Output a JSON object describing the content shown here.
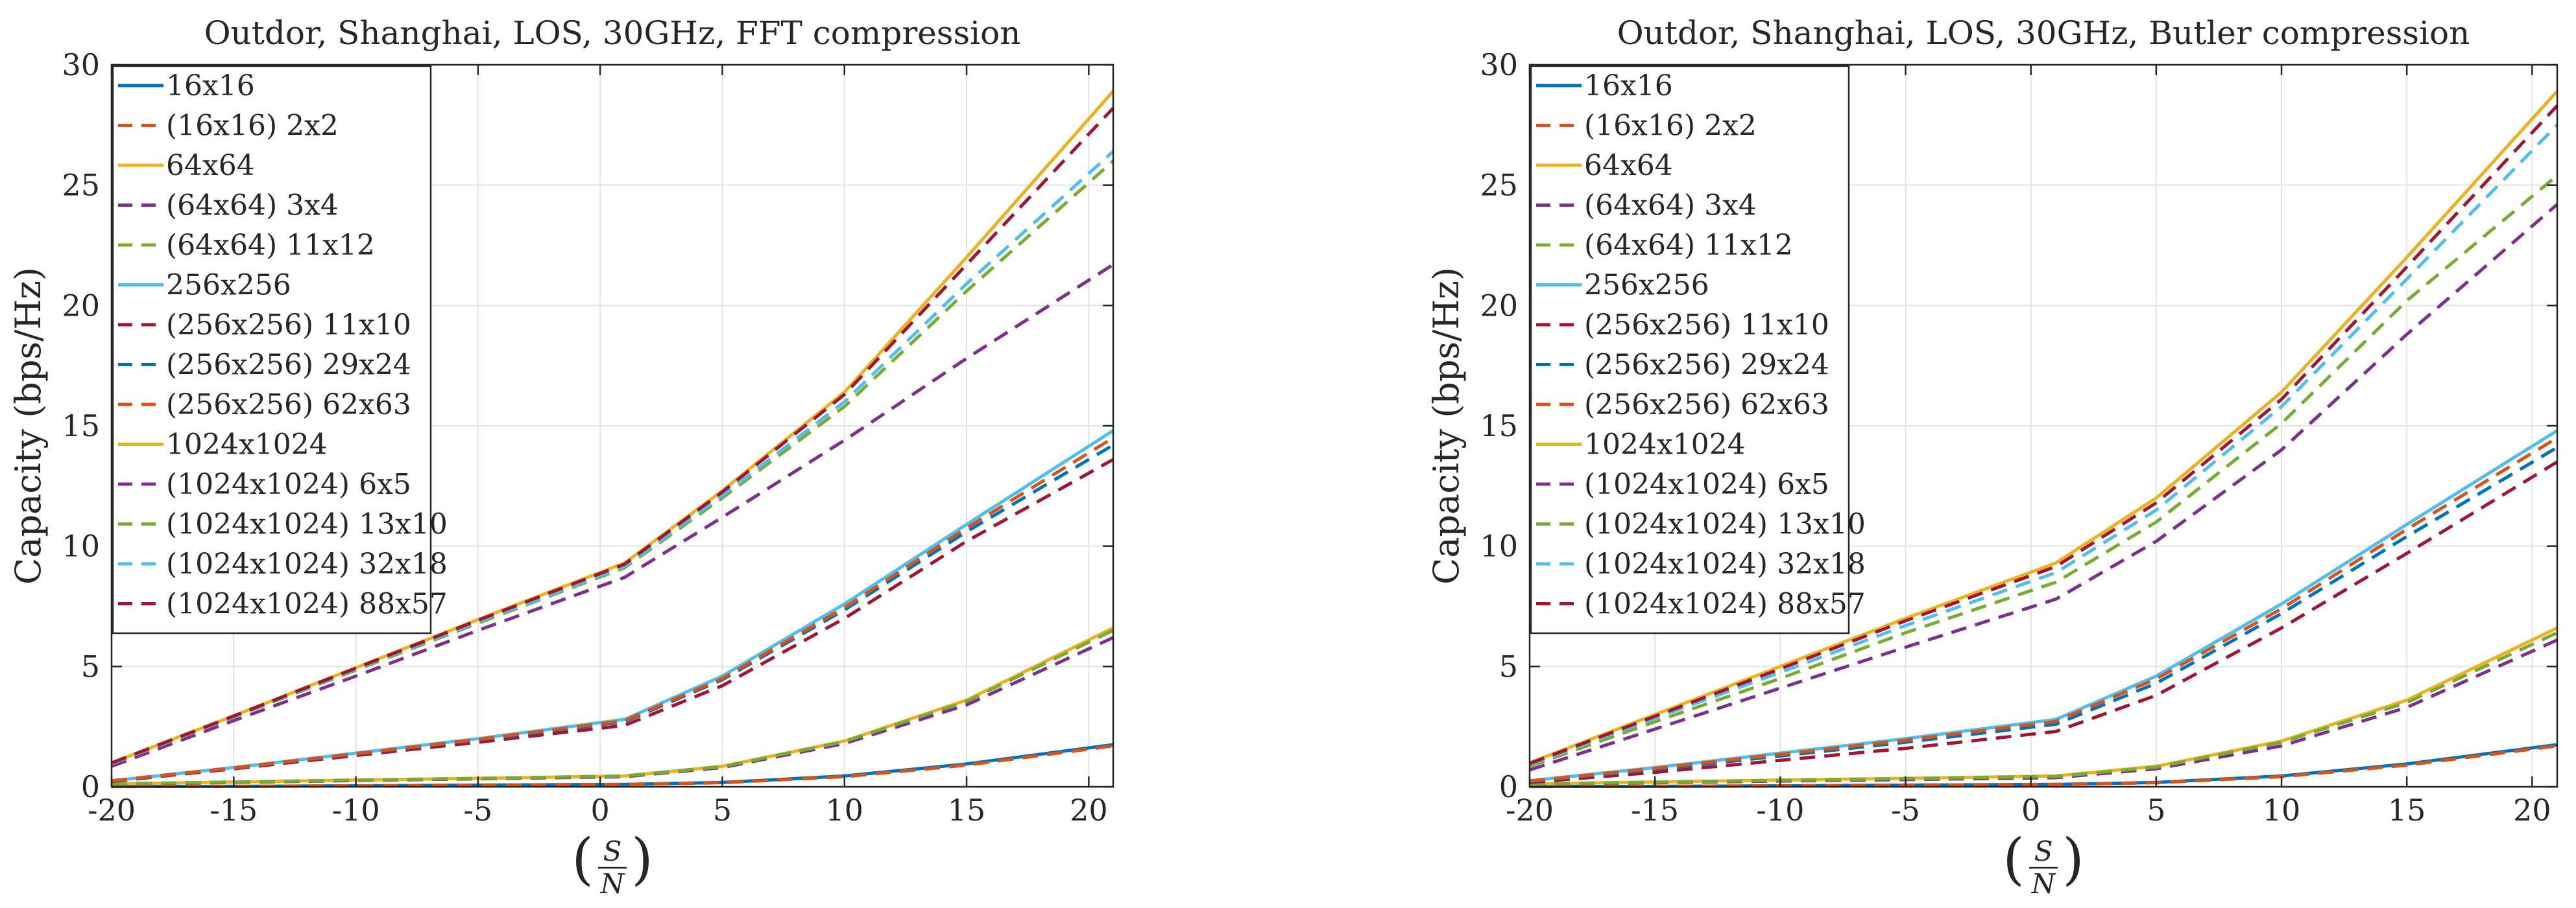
{
  "chart_data": [
    {
      "type": "line",
      "title": "Outdor, Shanghai, LOS, 30GHz, FFT compression",
      "ylabel": "Capacity (bps/Hz)",
      "xlabel": {
        "open": "(",
        "numerator": "S",
        "denominator": "N",
        "close": ")"
      },
      "xlim": [
        -20,
        21
      ],
      "ylim": [
        0,
        30
      ],
      "xticks": [
        -20,
        -15,
        -10,
        -5,
        0,
        5,
        10,
        15,
        20
      ],
      "xtick_labels": [
        "-20",
        "-15",
        "-10",
        "-5",
        "0",
        "5",
        "10",
        "15",
        "20"
      ],
      "yticks": [
        0,
        5,
        10,
        15,
        20,
        25,
        30
      ],
      "ytick_labels": [
        "0",
        "5",
        "10",
        "15",
        "20",
        "25",
        "30"
      ],
      "grid": true,
      "legend_position": "upper-left",
      "x": [
        -20,
        -15,
        -10,
        -5,
        1,
        5,
        10,
        15,
        21
      ],
      "series": [
        {
          "name": "16x16",
          "color": "#0072BD",
          "dash": "solid",
          "values": [
            0.01,
            0.02,
            0.04,
            0.07,
            0.1,
            0.18,
            0.45,
            0.95,
            1.75
          ]
        },
        {
          "name": "(16x16) 2x2",
          "color": "#D95319",
          "dash": "dashed",
          "values": [
            0.01,
            0.02,
            0.04,
            0.07,
            0.1,
            0.17,
            0.42,
            0.9,
            1.7
          ]
        },
        {
          "name": "64x64",
          "color": "#EDB120",
          "dash": "solid",
          "values": [
            0.12,
            0.2,
            0.28,
            0.35,
            0.45,
            0.85,
            1.9,
            3.6,
            6.6
          ]
        },
        {
          "name": "(64x64) 3x4",
          "color": "#7E2F8E",
          "dash": "dashed",
          "values": [
            0.11,
            0.18,
            0.26,
            0.33,
            0.42,
            0.8,
            1.8,
            3.4,
            6.2
          ]
        },
        {
          "name": "(64x64) 11x12",
          "color": "#77AC30",
          "dash": "dashed",
          "values": [
            0.12,
            0.2,
            0.28,
            0.35,
            0.45,
            0.84,
            1.88,
            3.55,
            6.5
          ]
        },
        {
          "name": "256x256",
          "color": "#4DBEEE",
          "dash": "solid",
          "values": [
            0.25,
            0.8,
            1.4,
            2.0,
            2.8,
            4.6,
            7.6,
            10.9,
            14.8
          ]
        },
        {
          "name": "(256x256) 11x10",
          "color": "#A2142F",
          "dash": "dashed",
          "values": [
            0.22,
            0.75,
            1.3,
            1.85,
            2.55,
            4.2,
            7.0,
            10.2,
            13.6
          ]
        },
        {
          "name": "(256x256) 29x24",
          "color": "#0072BD",
          "dash": "dashed",
          "values": [
            0.24,
            0.78,
            1.36,
            1.95,
            2.7,
            4.45,
            7.35,
            10.6,
            14.2
          ]
        },
        {
          "name": "(256x256) 62x63",
          "color": "#D95319",
          "dash": "dashed",
          "values": [
            0.25,
            0.79,
            1.38,
            1.97,
            2.75,
            4.5,
            7.45,
            10.75,
            14.5
          ]
        },
        {
          "name": "1024x1024",
          "color": "#EDB120",
          "dash": "solid",
          "values": [
            1.0,
            2.95,
            4.95,
            6.95,
            9.3,
            12.3,
            16.4,
            22.0,
            28.9
          ]
        },
        {
          "name": "(1024x1024) 6x5",
          "color": "#7E2F8E",
          "dash": "dashed",
          "values": [
            0.85,
            2.75,
            4.6,
            6.5,
            8.7,
            11.2,
            14.4,
            17.8,
            21.7
          ]
        },
        {
          "name": "(1024x1024) 13x10",
          "color": "#77AC30",
          "dash": "dashed",
          "values": [
            0.95,
            2.9,
            4.85,
            6.8,
            9.1,
            12.0,
            15.8,
            20.6,
            26.0
          ]
        },
        {
          "name": "(1024x1024) 32x18",
          "color": "#4DBEEE",
          "dash": "dashed",
          "values": [
            0.97,
            2.92,
            4.9,
            6.85,
            9.15,
            12.1,
            16.0,
            20.9,
            26.4
          ]
        },
        {
          "name": "(1024x1024) 88x57",
          "color": "#A2142F",
          "dash": "dashed",
          "values": [
            0.99,
            2.94,
            4.93,
            6.92,
            9.25,
            12.25,
            16.3,
            21.7,
            28.2
          ]
        }
      ]
    },
    {
      "type": "line",
      "title": "Outdor, Shanghai, LOS, 30GHz, Butler compression",
      "ylabel": "Capacity (bps/Hz)",
      "xlabel": {
        "open": "(",
        "numerator": "S",
        "denominator": "N",
        "close": ")"
      },
      "xlim": [
        -20,
        21
      ],
      "ylim": [
        0,
        30
      ],
      "xticks": [
        -20,
        -15,
        -10,
        -5,
        0,
        5,
        10,
        15,
        20
      ],
      "xtick_labels": [
        "-20",
        "-15",
        "-10",
        "-5",
        "0",
        "5",
        "10",
        "15",
        "20"
      ],
      "yticks": [
        0,
        5,
        10,
        15,
        20,
        25,
        30
      ],
      "ytick_labels": [
        "0",
        "5",
        "10",
        "15",
        "20",
        "25",
        "30"
      ],
      "grid": true,
      "legend_position": "upper-left",
      "x": [
        -20,
        -15,
        -10,
        -5,
        1,
        5,
        10,
        15,
        21
      ],
      "series": [
        {
          "name": "16x16",
          "color": "#0072BD",
          "dash": "solid",
          "values": [
            0.01,
            0.02,
            0.04,
            0.07,
            0.1,
            0.18,
            0.45,
            0.95,
            1.75
          ]
        },
        {
          "name": "(16x16) 2x2",
          "color": "#D95319",
          "dash": "dashed",
          "values": [
            0.01,
            0.02,
            0.04,
            0.07,
            0.1,
            0.17,
            0.42,
            0.9,
            1.7
          ]
        },
        {
          "name": "64x64",
          "color": "#EDB120",
          "dash": "solid",
          "values": [
            0.12,
            0.2,
            0.28,
            0.35,
            0.45,
            0.85,
            1.9,
            3.6,
            6.6
          ]
        },
        {
          "name": "(64x64) 3x4",
          "color": "#7E2F8E",
          "dash": "dashed",
          "values": [
            0.1,
            0.17,
            0.24,
            0.3,
            0.38,
            0.75,
            1.7,
            3.3,
            6.1
          ]
        },
        {
          "name": "(64x64) 11x12",
          "color": "#77AC30",
          "dash": "dashed",
          "values": [
            0.11,
            0.19,
            0.27,
            0.34,
            0.43,
            0.82,
            1.85,
            3.5,
            6.4
          ]
        },
        {
          "name": "256x256",
          "color": "#4DBEEE",
          "dash": "solid",
          "values": [
            0.25,
            0.8,
            1.4,
            2.0,
            2.8,
            4.6,
            7.6,
            10.9,
            14.8
          ]
        },
        {
          "name": "(256x256) 11x10",
          "color": "#A2142F",
          "dash": "dashed",
          "values": [
            0.18,
            0.6,
            1.1,
            1.6,
            2.3,
            3.8,
            6.6,
            9.7,
            13.5
          ]
        },
        {
          "name": "(256x256) 29x24",
          "color": "#0072BD",
          "dash": "dashed",
          "values": [
            0.22,
            0.72,
            1.28,
            1.85,
            2.6,
            4.3,
            7.2,
            10.4,
            14.1
          ]
        },
        {
          "name": "(256x256) 62x63",
          "color": "#D95319",
          "dash": "dashed",
          "values": [
            0.24,
            0.77,
            1.35,
            1.94,
            2.72,
            4.48,
            7.4,
            10.7,
            14.5
          ]
        },
        {
          "name": "1024x1024",
          "color": "#EDB120",
          "dash": "solid",
          "values": [
            1.0,
            3.0,
            5.0,
            7.0,
            9.3,
            12.0,
            16.4,
            22.0,
            28.9
          ]
        },
        {
          "name": "(1024x1024) 6x5",
          "color": "#7E2F8E",
          "dash": "dashed",
          "values": [
            0.7,
            2.4,
            4.1,
            5.8,
            7.8,
            10.2,
            14.0,
            18.8,
            24.2
          ]
        },
        {
          "name": "(1024x1024) 13x10",
          "color": "#77AC30",
          "dash": "dashed",
          "values": [
            0.85,
            2.7,
            4.5,
            6.4,
            8.5,
            11.0,
            15.1,
            20.2,
            25.4
          ]
        },
        {
          "name": "(1024x1024) 32x18",
          "color": "#4DBEEE",
          "dash": "dashed",
          "values": [
            0.93,
            2.85,
            4.75,
            6.7,
            8.9,
            11.5,
            15.8,
            21.1,
            27.5
          ]
        },
        {
          "name": "(1024x1024) 88x57",
          "color": "#A2142F",
          "dash": "dashed",
          "values": [
            0.97,
            2.93,
            4.9,
            6.9,
            9.15,
            11.8,
            16.1,
            21.6,
            28.3
          ]
        }
      ]
    }
  ]
}
